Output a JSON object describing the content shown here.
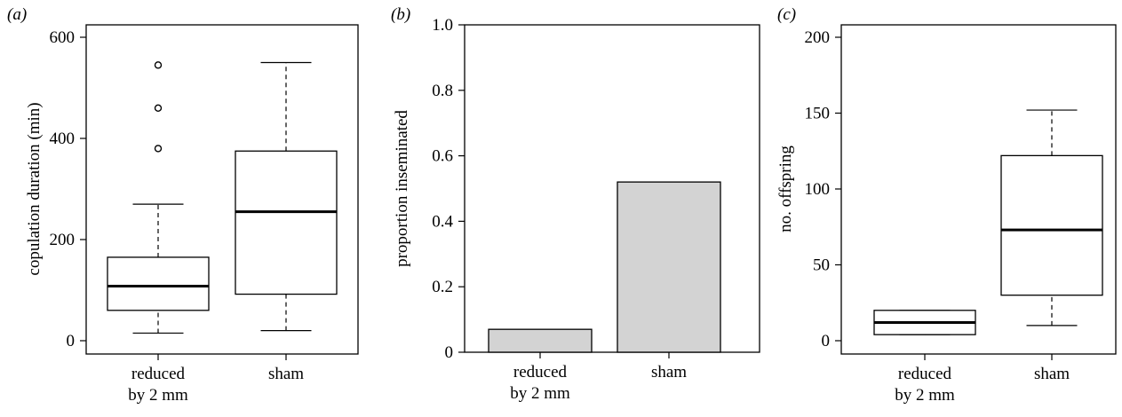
{
  "chart_data": [
    {
      "panel": "(a)",
      "type": "boxplot",
      "ylabel": "copulation duration (min)",
      "ylim": [
        0,
        600
      ],
      "yticks": [
        "0",
        "200",
        "400",
        "600"
      ],
      "categories": [
        "reduced\nby 2 mm",
        "sham"
      ],
      "boxes": [
        {
          "category": "reduced\nby 2 mm",
          "whisker_low": 15,
          "q1": 60,
          "median": 108,
          "q3": 165,
          "whisker_high": 270,
          "outliers": [
            380,
            460,
            545
          ]
        },
        {
          "category": "sham",
          "whisker_low": 20,
          "q1": 92,
          "median": 255,
          "q3": 375,
          "whisker_high": 550,
          "outliers": []
        }
      ]
    },
    {
      "panel": "(b)",
      "type": "bar",
      "ylabel": "proportion inseminated",
      "ylim": [
        0,
        1
      ],
      "yticks": [
        "0",
        "0.2",
        "0.4",
        "0.6",
        "0.8",
        "1.0"
      ],
      "categories": [
        "reduced\nby 2 mm",
        "sham"
      ],
      "values": [
        0.07,
        0.52
      ],
      "bar_color": "#d3d3d3"
    },
    {
      "panel": "(c)",
      "type": "boxplot",
      "ylabel": "no. offspring",
      "ylim": [
        0,
        200
      ],
      "yticks": [
        "0",
        "50",
        "100",
        "150",
        "200"
      ],
      "categories": [
        "reduced\nby 2 mm",
        "sham"
      ],
      "boxes": [
        {
          "category": "reduced\nby 2 mm",
          "whisker_low": 4,
          "q1": 4,
          "median": 12,
          "q3": 20,
          "whisker_high": 20,
          "outliers": []
        },
        {
          "category": "sham",
          "whisker_low": 10,
          "q1": 30,
          "median": 73,
          "q3": 122,
          "whisker_high": 152,
          "outliers": []
        }
      ]
    }
  ]
}
